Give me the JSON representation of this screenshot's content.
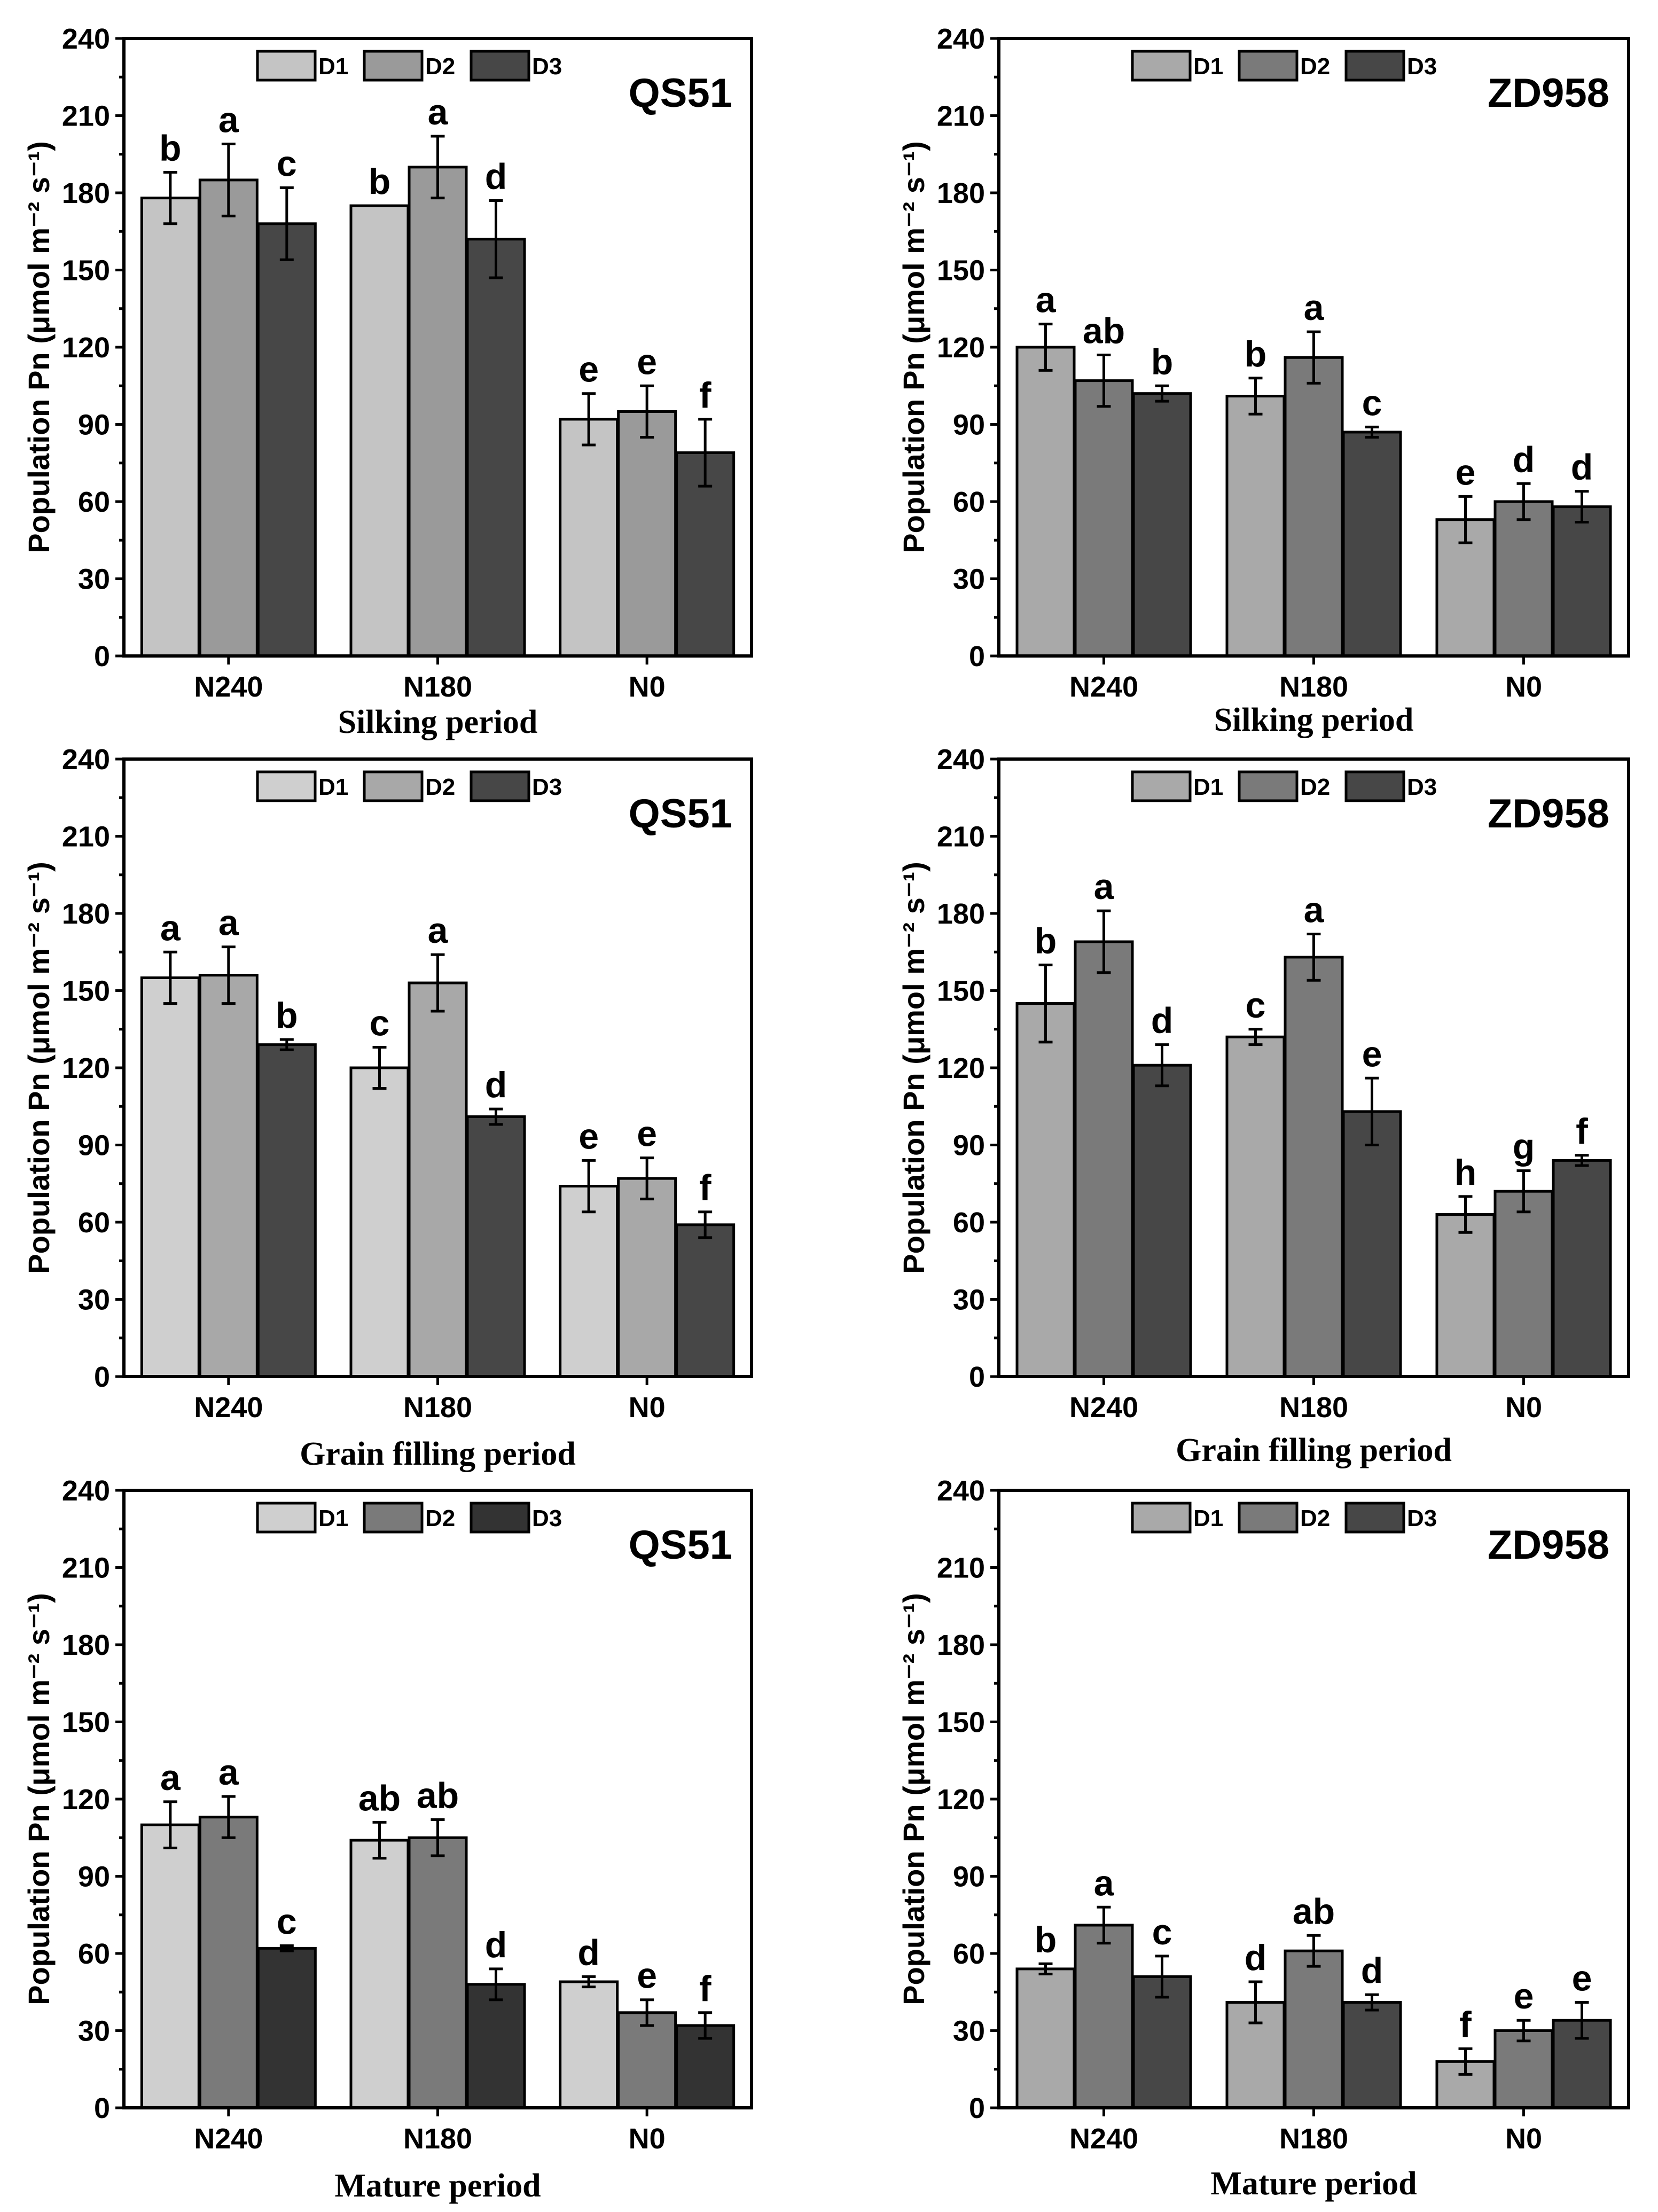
{
  "chart_data": [
    {
      "type": "bar",
      "panel": "top-left",
      "title": "QS51",
      "xlabel": "Silking period",
      "ylabel": "Population Pn (μmol m⁻² s⁻¹)",
      "ylim": [
        0,
        240
      ],
      "yticks": [
        "0",
        "30",
        "60",
        "90",
        "120",
        "150",
        "180",
        "210",
        "240"
      ],
      "categories": [
        "N240",
        "N180",
        "N0"
      ],
      "legend": {
        "placement": "top-center"
      },
      "series": [
        {
          "name": "D1",
          "color": "#c4c4c4",
          "values": [
            178,
            175,
            92
          ],
          "errors": [
            10,
            0,
            10
          ],
          "letters": [
            "b",
            "b",
            "e"
          ]
        },
        {
          "name": "D2",
          "color": "#9a9a9a",
          "values": [
            185,
            190,
            95
          ],
          "errors": [
            14,
            12,
            10
          ],
          "letters": [
            "a",
            "a",
            "e"
          ]
        },
        {
          "name": "D3",
          "color": "#474747",
          "values": [
            168,
            162,
            79
          ],
          "errors": [
            14,
            15,
            13
          ],
          "letters": [
            "c",
            "d",
            "f"
          ]
        }
      ]
    },
    {
      "type": "bar",
      "panel": "top-right",
      "title": "ZD958",
      "xlabel": "Silking period",
      "ylabel": "Population Pn (μmol m⁻² s⁻¹)",
      "ylim": [
        0,
        240
      ],
      "yticks": [
        "0",
        "30",
        "60",
        "90",
        "120",
        "150",
        "180",
        "210",
        "240"
      ],
      "categories": [
        "N240",
        "N180",
        "N0"
      ],
      "legend": {
        "placement": "top-center"
      },
      "series": [
        {
          "name": "D1",
          "color": "#a9a9a9",
          "values": [
            120,
            101,
            53
          ],
          "errors": [
            9,
            7,
            9
          ],
          "letters": [
            "a",
            "b",
            "e"
          ]
        },
        {
          "name": "D2",
          "color": "#7a7a7a",
          "values": [
            107,
            116,
            60
          ],
          "errors": [
            10,
            10,
            7
          ],
          "letters": [
            "ab",
            "a",
            "d"
          ]
        },
        {
          "name": "D3",
          "color": "#474747",
          "values": [
            102,
            87,
            58
          ],
          "errors": [
            3,
            2,
            6
          ],
          "letters": [
            "b",
            "c",
            "d"
          ]
        }
      ]
    },
    {
      "type": "bar",
      "panel": "middle-left",
      "title": "QS51",
      "xlabel": "Grain filling period",
      "ylabel": "Population Pn (μmol m⁻² s⁻¹)",
      "ylim": [
        0,
        240
      ],
      "yticks": [
        "0",
        "30",
        "60",
        "90",
        "120",
        "150",
        "180",
        "210",
        "240"
      ],
      "categories": [
        "N240",
        "N180",
        "N0"
      ],
      "legend": {
        "placement": "top-center"
      },
      "series": [
        {
          "name": "D1",
          "color": "#cfcfcf",
          "values": [
            155,
            120,
            74
          ],
          "errors": [
            10,
            8,
            10
          ],
          "letters": [
            "a",
            "c",
            "e"
          ]
        },
        {
          "name": "D2",
          "color": "#a8a8a8",
          "values": [
            156,
            153,
            77
          ],
          "errors": [
            11,
            11,
            8
          ],
          "letters": [
            "a",
            "a",
            "e"
          ]
        },
        {
          "name": "D3",
          "color": "#474747",
          "values": [
            129,
            101,
            59
          ],
          "errors": [
            2,
            3,
            5
          ],
          "letters": [
            "b",
            "d",
            "f"
          ]
        }
      ]
    },
    {
      "type": "bar",
      "panel": "middle-right",
      "title": "ZD958",
      "xlabel": "Grain filling period",
      "ylabel": "Population Pn (μmol m⁻² s⁻¹)",
      "ylim": [
        0,
        240
      ],
      "yticks": [
        "0",
        "30",
        "60",
        "90",
        "120",
        "150",
        "180",
        "210",
        "240"
      ],
      "categories": [
        "N240",
        "N180",
        "N0"
      ],
      "legend": {
        "placement": "top-center"
      },
      "series": [
        {
          "name": "D1",
          "color": "#a9a9a9",
          "values": [
            145,
            132,
            63
          ],
          "errors": [
            15,
            3,
            7
          ],
          "letters": [
            "b",
            "c",
            "h"
          ]
        },
        {
          "name": "D2",
          "color": "#7a7a7a",
          "values": [
            169,
            163,
            72
          ],
          "errors": [
            12,
            9,
            8
          ],
          "letters": [
            "a",
            "a",
            "g"
          ]
        },
        {
          "name": "D3",
          "color": "#474747",
          "values": [
            121,
            103,
            84
          ],
          "errors": [
            8,
            13,
            2
          ],
          "letters": [
            "d",
            "e",
            "f"
          ]
        }
      ]
    },
    {
      "type": "bar",
      "panel": "bottom-left",
      "title": "QS51",
      "xlabel": "Mature period",
      "ylabel": "Population Pn (μmol m⁻² s⁻¹)",
      "ylim": [
        0,
        240
      ],
      "yticks": [
        "0",
        "30",
        "60",
        "90",
        "120",
        "150",
        "180",
        "210",
        "240"
      ],
      "categories": [
        "N240",
        "N180",
        "N0"
      ],
      "legend": {
        "placement": "top-center"
      },
      "series": [
        {
          "name": "D1",
          "color": "#cfcfcf",
          "values": [
            110,
            104,
            49
          ],
          "errors": [
            9,
            7,
            2
          ],
          "letters": [
            "a",
            "ab",
            "d"
          ]
        },
        {
          "name": "D2",
          "color": "#7a7a7a",
          "values": [
            113,
            105,
            37
          ],
          "errors": [
            8,
            7,
            5
          ],
          "letters": [
            "a",
            "ab",
            "e"
          ]
        },
        {
          "name": "D3",
          "color": "#333333",
          "values": [
            62,
            48,
            32
          ],
          "errors": [
            1,
            6,
            5
          ],
          "letters": [
            "c",
            "d",
            "f"
          ]
        }
      ]
    },
    {
      "type": "bar",
      "panel": "bottom-right",
      "title": "ZD958",
      "xlabel": "Mature period",
      "ylabel": "Population Pn (μmol m⁻² s⁻¹)",
      "ylim": [
        0,
        240
      ],
      "yticks": [
        "0",
        "30",
        "60",
        "90",
        "120",
        "150",
        "180",
        "210",
        "240"
      ],
      "categories": [
        "N240",
        "N180",
        "N0"
      ],
      "legend": {
        "placement": "top-center"
      },
      "series": [
        {
          "name": "D1",
          "color": "#a9a9a9",
          "values": [
            54,
            41,
            18
          ],
          "errors": [
            2,
            8,
            5
          ],
          "letters": [
            "b",
            "d",
            "f"
          ]
        },
        {
          "name": "D2",
          "color": "#7a7a7a",
          "values": [
            71,
            61,
            30
          ],
          "errors": [
            7,
            6,
            4
          ],
          "letters": [
            "a",
            "ab",
            "e"
          ]
        },
        {
          "name": "D3",
          "color": "#474747",
          "values": [
            51,
            41,
            34
          ],
          "errors": [
            8,
            3,
            7
          ],
          "letters": [
            "c",
            "d",
            "e"
          ]
        }
      ]
    }
  ]
}
